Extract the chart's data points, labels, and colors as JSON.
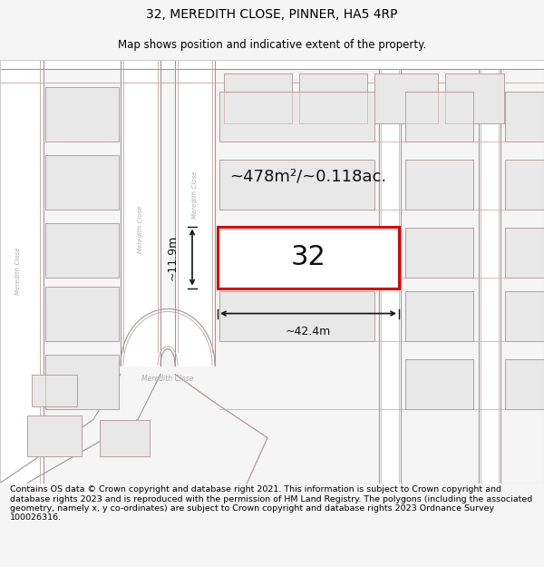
{
  "title_line1": "32, MEREDITH CLOSE, PINNER, HA5 4RP",
  "title_line2": "Map shows position and indicative extent of the property.",
  "footer_text": "Contains OS data © Crown copyright and database right 2021. This information is subject to Crown copyright and database rights 2023 and is reproduced with the permission of HM Land Registry. The polygons (including the associated geometry, namely x, y co-ordinates) are subject to Crown copyright and database rights 2023 Ordnance Survey 100026316.",
  "bg_color": "#f5f5f5",
  "map_bg": "#ffffff",
  "road_outline": "#c8a0a0",
  "road_inner": "#e8e8e8",
  "bld_fill": "#e8e8e8",
  "bld_edge": "#c8a0a0",
  "plot_fill": "#ffffff",
  "plot_outline": "#dd0000",
  "plot_label": "32",
  "area_text": "~478m²/~0.118ac.",
  "dim_width": "~42.4m",
  "dim_height": "~11.9m",
  "footer_bg": "#ffffff",
  "title_fontsize": 10,
  "subtitle_fontsize": 8.5,
  "footer_fontsize": 6.8
}
